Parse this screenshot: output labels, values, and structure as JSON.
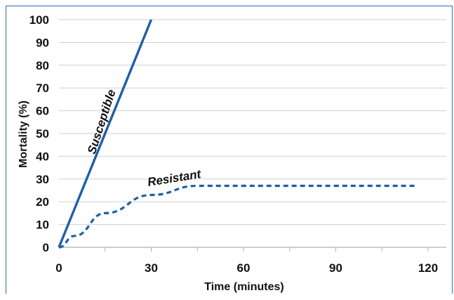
{
  "chart_data": {
    "type": "line",
    "xlabel": "Time (minutes)",
    "ylabel": "Mortality (%)",
    "xlim": [
      0,
      120
    ],
    "ylim": [
      0,
      100
    ],
    "x_ticks": [
      0,
      30,
      60,
      90,
      120
    ],
    "y_ticks": [
      0,
      10,
      20,
      30,
      40,
      50,
      60,
      70,
      80,
      90,
      100
    ],
    "grid": "horizontal",
    "series": [
      {
        "name": "Susceptible",
        "style": "solid",
        "color": "#1f5ea8",
        "points": [
          [
            0,
            0
          ],
          [
            30,
            100
          ]
        ]
      },
      {
        "name": "Resistant",
        "style": "dashed",
        "color": "#1f5ea8",
        "points": [
          [
            0,
            0
          ],
          [
            5,
            5
          ],
          [
            15,
            15
          ],
          [
            30,
            23
          ],
          [
            45,
            27
          ],
          [
            60,
            27
          ],
          [
            90,
            27
          ],
          [
            120,
            27
          ]
        ]
      }
    ]
  }
}
